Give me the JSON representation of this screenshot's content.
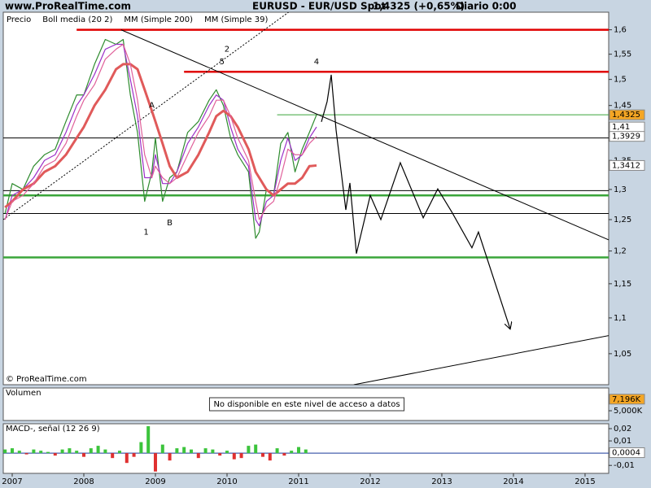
{
  "site": "www.ProRealTime.com",
  "chart_data": [
    {
      "type": "line",
      "title": "EURUSD - EUR/USD Spot",
      "quote": "1,4325 (+0,65%)",
      "period": "Diario  0:00",
      "copyright": "© ProRealTime.com",
      "log_scale": true,
      "xlim": [
        2006.875,
        2015.33
      ],
      "ylim": [
        1.0085,
        1.637
      ],
      "yticks": [
        {
          "value": 1.05,
          "label": "1,05"
        },
        {
          "value": 1.1,
          "label": "1,1"
        },
        {
          "value": 1.15,
          "label": "1,15"
        },
        {
          "value": 1.2,
          "label": "1,2"
        },
        {
          "value": 1.25,
          "label": "1,25"
        },
        {
          "value": 1.3,
          "label": "1,3"
        },
        {
          "value": 1.35,
          "label": "1,35"
        },
        {
          "value": 1.4,
          "label": "1,4"
        },
        {
          "value": 1.45,
          "label": "1,45"
        },
        {
          "value": 1.5,
          "label": "1,5"
        },
        {
          "value": 1.55,
          "label": "1,55"
        },
        {
          "value": 1.6,
          "label": "1,6"
        }
      ],
      "x": [
        2006.9,
        2007.0,
        2007.15,
        2007.3,
        2007.45,
        2007.6,
        2007.75,
        2007.9,
        2008.0,
        2008.15,
        2008.3,
        2008.45,
        2008.55,
        2008.65,
        2008.75,
        2008.85,
        2008.95,
        2009.0,
        2009.1,
        2009.2,
        2009.3,
        2009.45,
        2009.6,
        2009.75,
        2009.85,
        2009.95,
        2010.05,
        2010.15,
        2010.3,
        2010.4,
        2010.45,
        2010.55,
        2010.65,
        2010.75,
        2010.85,
        2010.95,
        2011.05,
        2011.15,
        2011.25
      ],
      "series": [
        {
          "name": "Precio",
          "color": "#2e8b2e",
          "label_color": "#000000",
          "box_fill": "#f5a623",
          "last_label": "1,4325",
          "values": [
            1.26,
            1.31,
            1.3,
            1.34,
            1.36,
            1.37,
            1.42,
            1.47,
            1.47,
            1.53,
            1.58,
            1.57,
            1.58,
            1.47,
            1.4,
            1.28,
            1.33,
            1.39,
            1.28,
            1.32,
            1.33,
            1.4,
            1.42,
            1.46,
            1.48,
            1.45,
            1.39,
            1.36,
            1.33,
            1.22,
            1.23,
            1.3,
            1.29,
            1.38,
            1.4,
            1.33,
            1.37,
            1.4,
            1.4325
          ]
        },
        {
          "name": "Boll media (20 2)",
          "color": "#9b30c8",
          "last_label": "1,41",
          "values": [
            1.25,
            1.29,
            1.3,
            1.32,
            1.35,
            1.36,
            1.4,
            1.45,
            1.47,
            1.51,
            1.56,
            1.57,
            1.57,
            1.5,
            1.43,
            1.32,
            1.32,
            1.36,
            1.31,
            1.31,
            1.33,
            1.38,
            1.41,
            1.45,
            1.47,
            1.46,
            1.41,
            1.37,
            1.34,
            1.25,
            1.24,
            1.28,
            1.29,
            1.35,
            1.39,
            1.35,
            1.36,
            1.39,
            1.41
          ]
        },
        {
          "name": "MM (Simple 200)",
          "color": "#e05a5a",
          "thick": true,
          "last_label": "1,3412",
          "values": [
            1.27,
            1.28,
            1.3,
            1.31,
            1.33,
            1.34,
            1.36,
            1.39,
            1.41,
            1.45,
            1.48,
            1.52,
            1.53,
            1.53,
            1.52,
            1.48,
            1.44,
            1.42,
            1.38,
            1.34,
            1.32,
            1.33,
            1.36,
            1.4,
            1.43,
            1.44,
            1.43,
            1.41,
            1.37,
            1.33,
            1.32,
            1.3,
            1.29,
            1.3,
            1.31,
            1.31,
            1.32,
            1.34,
            1.3412
          ]
        },
        {
          "name": "MM (Simple 39)",
          "color": "#e0609a",
          "last_label": "1,3929",
          "values": [
            1.25,
            1.28,
            1.29,
            1.31,
            1.34,
            1.35,
            1.38,
            1.43,
            1.46,
            1.49,
            1.54,
            1.56,
            1.57,
            1.53,
            1.46,
            1.36,
            1.32,
            1.34,
            1.32,
            1.31,
            1.32,
            1.36,
            1.4,
            1.43,
            1.46,
            1.46,
            1.43,
            1.39,
            1.35,
            1.28,
            1.25,
            1.27,
            1.28,
            1.32,
            1.37,
            1.36,
            1.36,
            1.38,
            1.3929
          ]
        }
      ],
      "levels": [
        {
          "value": 1.6,
          "from": 2007.9,
          "color": "#e00000",
          "thick": true
        },
        {
          "value": 1.515,
          "from": 2009.4,
          "color": "#e00000",
          "thick": true
        },
        {
          "value": 1.4325,
          "from": 2010.7,
          "color": "#3aa53a"
        },
        {
          "value": 1.39,
          "from": 2006.875,
          "color": "#000000"
        },
        {
          "value": 1.298,
          "from": 2006.875,
          "color": "#000000"
        },
        {
          "value": 1.29,
          "from": 2006.875,
          "color": "#3aa53a",
          "thick": true
        },
        {
          "value": 1.26,
          "from": 2006.875,
          "color": "#000000"
        },
        {
          "value": 1.19,
          "from": 2006.875,
          "color": "#3aa53a",
          "thick": true
        }
      ],
      "trendlines": [
        {
          "x": [
            2008.52,
            2015.33
          ],
          "y": [
            1.6,
            1.2175
          ],
          "color": "#000000"
        },
        {
          "x": [
            2006.875,
            2010.86
          ],
          "y": [
            1.25,
            1.637
          ],
          "color": "#000000",
          "dashed": true
        },
        {
          "x": [
            2011.77,
            2015.33
          ],
          "y": [
            1.0085,
            1.075
          ],
          "color": "#000000"
        }
      ],
      "forecast": {
        "color": "#000000",
        "x": [
          2011.318,
          2011.398,
          2011.455,
          2011.523,
          2011.659,
          2011.716,
          2011.807,
          2012.0,
          2012.148,
          2012.42,
          2012.74,
          2012.943,
          2013.136,
          2013.42,
          2013.511,
          2013.955
        ],
        "y": [
          1.4195,
          1.4574,
          1.509,
          1.4045,
          1.266,
          1.311,
          1.196,
          1.29,
          1.25,
          1.346,
          1.253,
          1.301,
          1.263,
          1.205,
          1.23,
          1.084
        ]
      },
      "wave_labels": [
        {
          "text": "1",
          "x": 2008.87,
          "y": 1.23
        },
        {
          "text": "B",
          "x": 2009.2,
          "y": 1.245
        },
        {
          "text": "A",
          "x": 2008.95,
          "y": 1.45
        },
        {
          "text": "5",
          "x": 2009.93,
          "y": 1.535
        },
        {
          "text": "2",
          "x": 2010.0,
          "y": 1.56
        },
        {
          "text": "4",
          "x": 2011.25,
          "y": 1.535
        }
      ]
    },
    {
      "type": "volume",
      "title": "Volumen",
      "message": "No disponible en este nivel de acceso a datos",
      "ylim": [
        0,
        16700
      ],
      "yticks": [
        {
          "value": 5000,
          "label": "5,000K"
        }
      ],
      "last_value": {
        "value": 7196,
        "label": "7,196K"
      }
    },
    {
      "type": "bar",
      "title": "MACD-, señal (12 26 9)",
      "color": "#3cc43c",
      "negative_color": "#e03030",
      "xlim": [
        2006.875,
        2015.33
      ],
      "xticks": [
        2007,
        2008,
        2009,
        2010,
        2011,
        2012,
        2013,
        2014,
        2015
      ],
      "ylim": [
        -0.0165,
        0.024
      ],
      "yticks": [
        {
          "value": -0.01,
          "label": "-0,01"
        },
        {
          "value": 0.01,
          "label": "0,01"
        },
        {
          "value": 0.02,
          "label": "0,02"
        }
      ],
      "last_value": {
        "value": 0.0004,
        "label": "0,0004"
      },
      "x": [
        2006.9,
        2007.0,
        2007.1,
        2007.2,
        2007.3,
        2007.4,
        2007.5,
        2007.6,
        2007.7,
        2007.8,
        2007.9,
        2008.0,
        2008.1,
        2008.2,
        2008.3,
        2008.4,
        2008.5,
        2008.6,
        2008.7,
        2008.8,
        2008.9,
        2009.0,
        2009.1,
        2009.2,
        2009.3,
        2009.4,
        2009.5,
        2009.6,
        2009.7,
        2009.8,
        2009.9,
        2010.0,
        2010.1,
        2010.2,
        2010.3,
        2010.4,
        2010.5,
        2010.6,
        2010.7,
        2010.8,
        2010.9,
        2011.0,
        2011.1
      ],
      "values": [
        0.003,
        0.004,
        0.002,
        -0.001,
        0.003,
        0.002,
        0.001,
        -0.002,
        0.003,
        0.004,
        0.002,
        -0.003,
        0.004,
        0.006,
        0.003,
        -0.004,
        0.002,
        -0.008,
        -0.003,
        0.009,
        0.022,
        -0.015,
        0.007,
        -0.006,
        0.004,
        0.005,
        0.003,
        -0.004,
        0.004,
        0.003,
        -0.002,
        0.002,
        -0.005,
        -0.004,
        0.006,
        0.007,
        -0.003,
        -0.006,
        0.004,
        -0.002,
        0.002,
        0.005,
        0.003
      ]
    }
  ]
}
